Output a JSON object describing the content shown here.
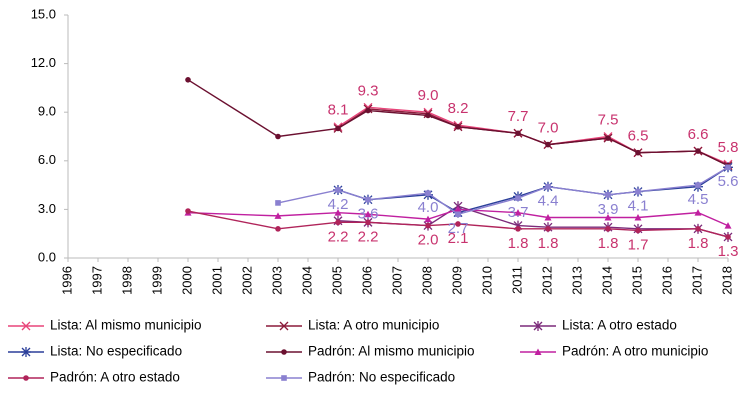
{
  "chart_data": {
    "type": "line",
    "xlim": [
      1996,
      2018
    ],
    "xticks": [
      1996,
      1997,
      1998,
      1999,
      2000,
      2001,
      2002,
      2003,
      2004,
      2005,
      2006,
      2007,
      2008,
      2009,
      2010,
      2011,
      2012,
      2013,
      2014,
      2015,
      2016,
      2017,
      2018
    ],
    "ylim": [
      0,
      15
    ],
    "yticks": [
      {
        "value": 0,
        "label": "0.0"
      },
      {
        "value": 3,
        "label": "3.0"
      },
      {
        "value": 6,
        "label": "6.0"
      },
      {
        "value": 9,
        "label": "9.0"
      },
      {
        "value": 12,
        "label": "12.0"
      },
      {
        "value": 15,
        "label": "15.0"
      }
    ],
    "grid": false,
    "legend": "bottom",
    "series": [
      {
        "name": "Lista: Al mismo municipio",
        "color": "#e8457a",
        "marker": "x",
        "x": [
          2005,
          2006,
          2008,
          2009,
          2011,
          2012,
          2014,
          2015,
          2017,
          2018
        ],
        "values": [
          8.1,
          9.3,
          9.0,
          8.2,
          7.7,
          7.0,
          7.5,
          6.5,
          6.6,
          5.8
        ],
        "value_labels": [
          "8.1",
          "9.3",
          "9.0",
          "8.2",
          "7.7",
          "7.0",
          "7.5",
          "6.5",
          "6.6",
          "5.8"
        ],
        "label_color": "#c8336e",
        "label_position": "above"
      },
      {
        "name": "Lista: A otro municipio",
        "color": "#8b1a3a",
        "marker": "x",
        "x": [
          2005,
          2006,
          2008,
          2009,
          2011,
          2012,
          2014,
          2015,
          2017,
          2018
        ],
        "values": [
          8.0,
          9.2,
          8.9,
          8.1,
          7.7,
          7.0,
          7.4,
          6.5,
          6.6,
          5.7
        ]
      },
      {
        "name": "Lista: A otro estado",
        "color": "#7b2a7a",
        "marker": "star",
        "x": [
          2005,
          2006,
          2008,
          2009,
          2011,
          2012,
          2014,
          2015,
          2017,
          2018
        ],
        "values": [
          2.3,
          2.2,
          2.0,
          3.2,
          2.0,
          1.9,
          1.9,
          1.8,
          1.8,
          1.3
        ]
      },
      {
        "name": "Lista: No especificado",
        "color": "#2b3f9a",
        "marker": "asterisk",
        "x": [
          2005,
          2006,
          2008,
          2009,
          2011,
          2012,
          2014,
          2015,
          2017,
          2018
        ],
        "values": [
          4.2,
          3.6,
          3.9,
          2.8,
          3.8,
          4.4,
          3.9,
          4.1,
          4.4,
          5.6
        ]
      },
      {
        "name": "Padrón: Al mismo municipio",
        "color": "#6b1030",
        "marker": "circle",
        "x": [
          2000,
          2003,
          2005,
          2006,
          2008,
          2009,
          2011,
          2012,
          2014,
          2015,
          2017,
          2018
        ],
        "values": [
          11.0,
          7.5,
          8.0,
          9.1,
          8.8,
          8.1,
          7.7,
          7.0,
          7.4,
          6.5,
          6.6,
          5.7
        ]
      },
      {
        "name": "Padrón: A otro municipio",
        "color": "#c020a0",
        "marker": "triangle",
        "x": [
          2000,
          2003,
          2005,
          2006,
          2008,
          2009,
          2011,
          2012,
          2014,
          2015,
          2017,
          2018
        ],
        "values": [
          2.8,
          2.6,
          2.8,
          2.7,
          2.4,
          3.0,
          2.8,
          2.5,
          2.5,
          2.5,
          2.8,
          2.0
        ]
      },
      {
        "name": "Padrón: A otro estado",
        "color": "#b0245a",
        "marker": "circle",
        "x": [
          2000,
          2003,
          2005,
          2006,
          2008,
          2009,
          2011,
          2012,
          2014,
          2015,
          2017,
          2018
        ],
        "values": [
          2.9,
          1.8,
          2.2,
          2.2,
          2.0,
          2.1,
          1.8,
          1.8,
          1.8,
          1.7,
          1.8,
          1.3
        ],
        "value_labels": [
          null,
          null,
          "2.2",
          "2.2",
          "2.0",
          "2.1",
          "1.8",
          "1.8",
          "1.8",
          "1.7",
          "1.8",
          "1.3"
        ],
        "label_color": "#c8336e",
        "label_position": "below"
      },
      {
        "name": "Padrón: No especificado",
        "color": "#8a80d0",
        "marker": "square",
        "x": [
          2003,
          2005,
          2006,
          2008,
          2009,
          2011,
          2012,
          2014,
          2015,
          2017,
          2018
        ],
        "values": [
          3.4,
          4.2,
          3.6,
          4.0,
          2.7,
          3.7,
          4.4,
          3.9,
          4.1,
          4.5,
          5.6
        ],
        "value_labels": [
          null,
          "4.2",
          "3.6",
          "4.0",
          "2.7",
          "3.7",
          "4.4",
          "3.9",
          "4.1",
          "4.5",
          "5.6"
        ],
        "label_color": "#8a80d0",
        "label_position": "below"
      }
    ]
  }
}
